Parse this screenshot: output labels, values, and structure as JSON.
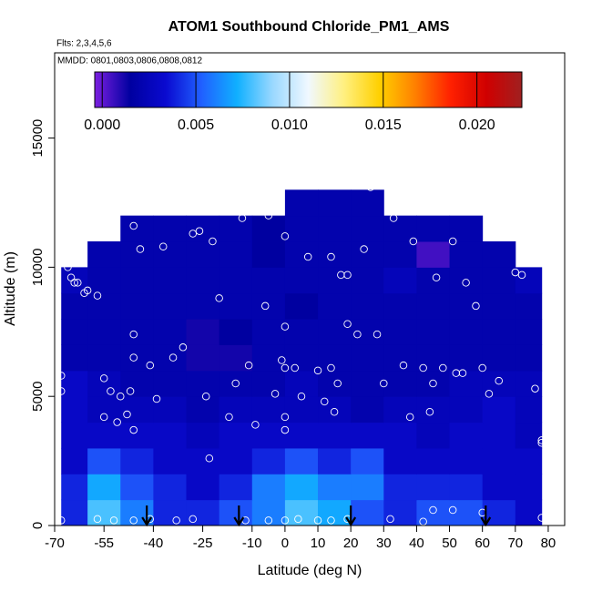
{
  "chart_data": {
    "type": "heatmap",
    "title": "ATOM1 Southbound Chloride_PM1_AMS",
    "subtitle": "Flts: 2,3,4,5,6",
    "annotation": "MMDD: 0801,0803,0806,0808,0812",
    "x_label": "Latitude (deg N)",
    "y_label": "Altitude (m)",
    "xlim": [
      -70,
      85
    ],
    "ylim": [
      0,
      18300
    ],
    "xticks": [
      -70,
      -55,
      -40,
      -25,
      -10,
      0,
      10,
      20,
      30,
      40,
      50,
      60,
      70,
      80
    ],
    "yticks": [
      0,
      5000,
      10000,
      15000
    ],
    "lat_edges": [
      -68,
      -60,
      -50,
      -40,
      -30,
      -20,
      -10,
      0,
      10,
      20,
      30,
      40,
      50,
      60,
      70,
      78
    ],
    "alt_edges": [
      0,
      1000,
      2000,
      3000,
      4000,
      5000,
      6000,
      7000,
      8000,
      9000,
      10000,
      11000,
      12000,
      13000
    ],
    "values": [
      [
        0.004,
        0.008,
        0.006,
        0.004,
        0.004,
        0.005,
        0.006,
        0.008,
        0.007,
        0.005,
        0.004,
        0.005,
        0.005,
        0.004,
        0.003
      ],
      [
        0.004,
        0.007,
        0.005,
        0.004,
        0.003,
        0.004,
        0.006,
        0.007,
        0.006,
        0.006,
        0.004,
        0.004,
        0.004,
        0.003,
        0.003
      ],
      [
        0.003,
        0.005,
        0.004,
        0.003,
        0.003,
        0.003,
        0.004,
        0.005,
        0.004,
        0.005,
        0.003,
        0.003,
        0.003,
        0.003,
        0.003
      ],
      [
        0.003,
        0.003,
        0.003,
        0.003,
        0.0025,
        0.003,
        0.003,
        0.003,
        0.003,
        0.003,
        0.003,
        0.0025,
        0.003,
        0.003,
        0.0025
      ],
      [
        0.003,
        0.0025,
        0.0025,
        0.0025,
        0.002,
        0.0025,
        0.0025,
        0.0025,
        0.0025,
        0.002,
        0.0025,
        0.0025,
        0.0025,
        0.003,
        0.0025
      ],
      [
        0.003,
        0.0025,
        0.002,
        0.002,
        0.002,
        0.002,
        0.002,
        0.0025,
        0.002,
        0.002,
        0.002,
        0.002,
        0.0025,
        0.0025,
        0.0025
      ],
      [
        0.002,
        0.002,
        0.002,
        0.002,
        0.0012,
        0.0012,
        0.002,
        0.002,
        0.002,
        0.002,
        0.002,
        0.002,
        0.002,
        0.002,
        0.002
      ],
      [
        0.002,
        0.002,
        0.002,
        0.002,
        0.0012,
        0.0015,
        0.002,
        0.002,
        0.002,
        0.002,
        0.002,
        0.002,
        0.002,
        0.002,
        0.002
      ],
      [
        0.002,
        0.002,
        0.002,
        0.002,
        0.002,
        0.002,
        0.002,
        0.0015,
        0.002,
        0.002,
        0.002,
        0.002,
        0.002,
        0.002,
        0.002
      ],
      [
        0.0025,
        0.002,
        0.002,
        0.002,
        0.002,
        0.002,
        0.002,
        0.002,
        0.002,
        0.002,
        0.0025,
        0.002,
        0.002,
        0.002,
        0.0025
      ],
      [
        null,
        0.002,
        0.002,
        0.002,
        0.002,
        0.002,
        0.0015,
        0.002,
        0.002,
        0.002,
        0.002,
        0.0005,
        0.002,
        0.002,
        null
      ],
      [
        null,
        null,
        0.002,
        0.002,
        0.002,
        0.002,
        0.0015,
        0.002,
        0.002,
        0.002,
        0.002,
        0.002,
        0.002,
        null,
        null
      ],
      [
        null,
        null,
        null,
        null,
        null,
        null,
        null,
        0.002,
        0.002,
        0.002,
        null,
        null,
        null,
        null,
        null
      ]
    ],
    "colormap": [
      "#7b1fe0",
      "#0000a0",
      "#0a0ad0",
      "#2060ff",
      "#10b0ff",
      "#9ad8ff",
      "#f0f8ff",
      "#fff080",
      "#ffd000",
      "#ff8000",
      "#ff2000",
      "#d00000",
      "#a02020"
    ],
    "clim": [
      -0.0004,
      0.0224
    ],
    "colorbar_ticks": [
      {
        "value": 0,
        "label": "0.000"
      },
      {
        "value": 0.005,
        "label": "0.005"
      },
      {
        "value": 0.01,
        "label": "0.010"
      },
      {
        "value": 0.015,
        "label": "0.015"
      },
      {
        "value": 0.02,
        "label": "0.020"
      }
    ],
    "points": {
      "lat": [
        -68,
        -68,
        -68,
        -67,
        -66,
        -65,
        -64,
        -63,
        -61,
        -60,
        -57,
        -55,
        -55,
        -53,
        -51,
        -50,
        -48,
        -47,
        -46,
        -46,
        -46,
        -46,
        -44,
        -41,
        -39,
        -37,
        -34,
        -31,
        -28,
        -26,
        -24,
        -23,
        -22,
        -20,
        -17,
        -15,
        -13,
        -11,
        -9,
        -6,
        -5,
        -3,
        -1,
        0,
        0,
        0,
        0,
        0,
        3,
        5,
        7,
        10,
        12,
        14,
        14,
        15,
        16,
        17,
        19,
        19,
        22,
        24,
        26,
        28,
        30,
        33,
        36,
        38,
        39,
        42,
        44,
        45,
        46,
        48,
        51,
        52,
        54,
        55,
        58,
        60,
        62,
        65,
        66,
        70,
        72,
        76,
        78,
        78,
        -68,
        -57,
        -52,
        -46,
        -41,
        -33,
        -28,
        -12,
        -5,
        0,
        4,
        10,
        14,
        19,
        32,
        42,
        45,
        51,
        60,
        78
      ],
      "alt": [
        5800,
        5200,
        10200,
        10200,
        10000,
        9600,
        9400,
        9400,
        9000,
        9100,
        8900,
        5700,
        4200,
        5200,
        4000,
        5000,
        4300,
        5200,
        3700,
        6500,
        7400,
        11600,
        10700,
        6200,
        4900,
        10800,
        6500,
        6900,
        11300,
        11400,
        5000,
        2600,
        11000,
        8800,
        4200,
        5500,
        11900,
        6200,
        3900,
        8500,
        12000,
        5100,
        6400,
        6100,
        7700,
        11200,
        4200,
        3700,
        6100,
        5000,
        10400,
        6000,
        4800,
        6100,
        10400,
        4400,
        5500,
        9700,
        9700,
        7800,
        7400,
        10700,
        13100,
        7400,
        5500,
        11900,
        6200,
        4200,
        11000,
        6100,
        4400,
        5500,
        9600,
        6100,
        11000,
        5900,
        5900,
        9400,
        8500,
        6100,
        5100,
        5600,
        11300,
        9800,
        9700,
        5300,
        3300,
        3200,
        200,
        250,
        200,
        200,
        250,
        200,
        250,
        200,
        200,
        200,
        250,
        200,
        200,
        250,
        250,
        150,
        600,
        600,
        500,
        300
      ]
    },
    "markers": [
      -42,
      -14,
      20,
      61
    ]
  }
}
